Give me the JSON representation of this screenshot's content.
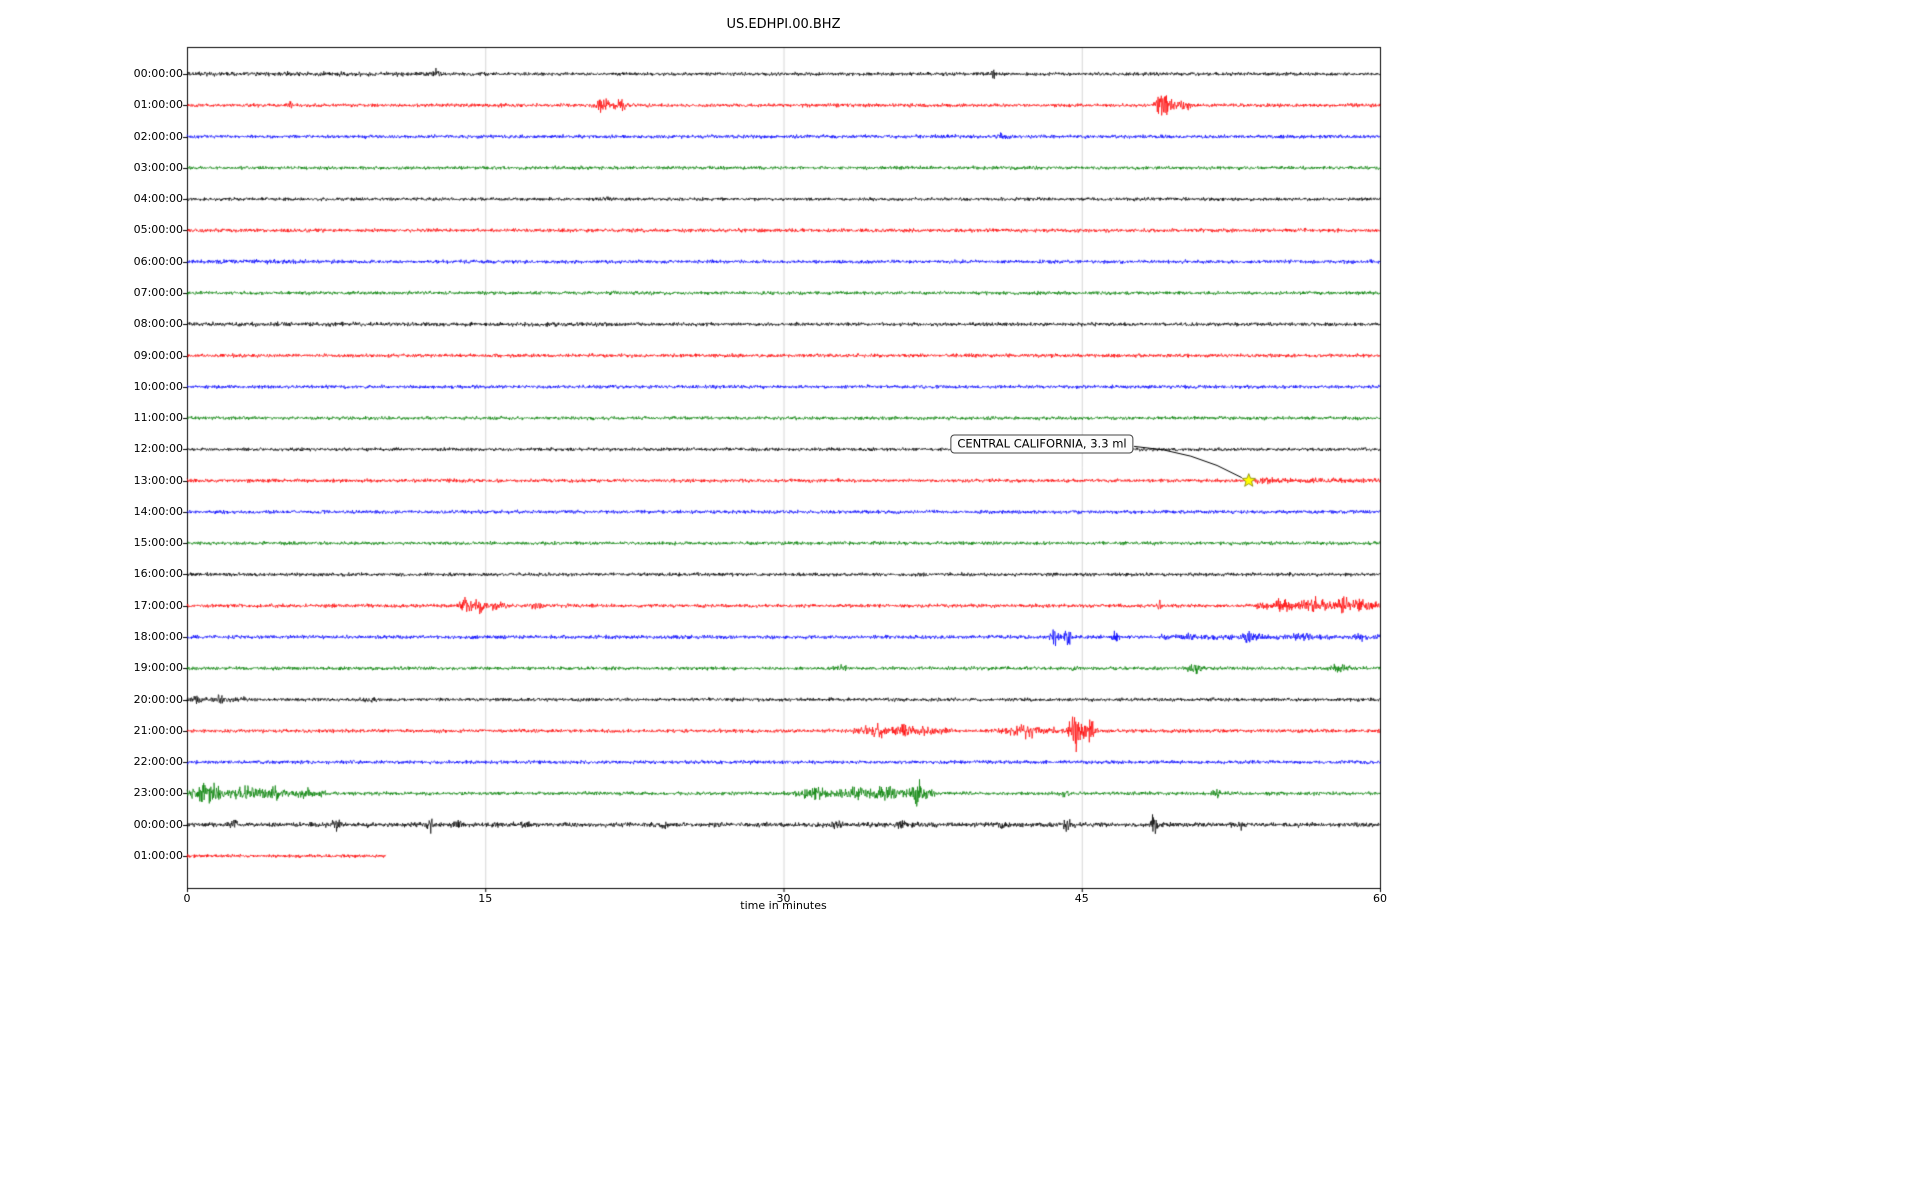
{
  "chart_data": {
    "type": "line",
    "subtype": "seismogram-dayplot",
    "title": "US.EDHPI.00.BHZ",
    "xlabel": "time in minutes",
    "x_range": [
      0,
      60
    ],
    "x_ticks": [
      0,
      15,
      30,
      45,
      60
    ],
    "x_tick_labels": [
      "0",
      "15",
      "30",
      "45",
      "60"
    ],
    "grid": true,
    "legend": false,
    "trace_colors_cycle": [
      "#000000",
      "#ff0000",
      "#0000ff",
      "#008000"
    ],
    "annotation": {
      "text": "CENTRAL CALIFORNIA, 3.3 ml",
      "target_min": 53.4,
      "target_row": 13,
      "box_min": 43.0,
      "box_row": 12,
      "box_dy": -5,
      "marker": "star",
      "marker_color": "#ffff00",
      "marker_edge": "#808000"
    },
    "rows": [
      {
        "label": "00:00:00",
        "color": "#000000",
        "base": 2.4,
        "spans": [
          [
            0,
            15,
            0.6
          ]
        ],
        "events": [
          [
            12.6,
            8,
            0.15
          ],
          [
            40.5,
            9,
            0.12
          ],
          [
            5.0,
            3,
            0.1
          ]
        ]
      },
      {
        "label": "01:00:00",
        "color": "#ff0000",
        "base": 2.4,
        "spans": [],
        "events": [
          [
            20.9,
            9,
            0.35
          ],
          [
            21.8,
            7,
            0.3
          ],
          [
            5.2,
            4,
            0.1
          ],
          [
            49.2,
            15,
            0.35
          ],
          [
            50.2,
            7,
            0.3
          ],
          [
            48.8,
            5,
            0.2
          ]
        ]
      },
      {
        "label": "02:00:00",
        "color": "#0000ff",
        "base": 2.5,
        "spans": [],
        "events": [
          [
            41,
            3,
            0.3
          ]
        ]
      },
      {
        "label": "03:00:00",
        "color": "#008000",
        "base": 2.4,
        "spans": [],
        "events": []
      },
      {
        "label": "04:00:00",
        "color": "#000000",
        "base": 2.3,
        "spans": [],
        "events": [
          [
            21,
            3,
            0.2
          ]
        ]
      },
      {
        "label": "05:00:00",
        "color": "#ff0000",
        "base": 2.6,
        "spans": [],
        "events": []
      },
      {
        "label": "06:00:00",
        "color": "#0000ff",
        "base": 2.5,
        "spans": [
          [
            0,
            8,
            0.6
          ]
        ],
        "events": []
      },
      {
        "label": "07:00:00",
        "color": "#008000",
        "base": 2.4,
        "spans": [],
        "events": []
      },
      {
        "label": "08:00:00",
        "color": "#000000",
        "base": 2.5,
        "spans": [
          [
            0,
            22,
            0.5
          ]
        ],
        "events": []
      },
      {
        "label": "09:00:00",
        "color": "#ff0000",
        "base": 2.5,
        "spans": [],
        "events": []
      },
      {
        "label": "10:00:00",
        "color": "#0000ff",
        "base": 2.4,
        "spans": [],
        "events": []
      },
      {
        "label": "11:00:00",
        "color": "#008000",
        "base": 2.4,
        "spans": [],
        "events": []
      },
      {
        "label": "12:00:00",
        "color": "#000000",
        "base": 2.3,
        "spans": [],
        "events": []
      },
      {
        "label": "13:00:00",
        "color": "#ff0000",
        "base": 2.5,
        "spans": [
          [
            53.5,
            60,
            1.2
          ]
        ],
        "events": [
          [
            54.2,
            3,
            0.3
          ]
        ]
      },
      {
        "label": "14:00:00",
        "color": "#0000ff",
        "base": 2.5,
        "spans": [],
        "events": []
      },
      {
        "label": "15:00:00",
        "color": "#008000",
        "base": 2.4,
        "spans": [],
        "events": []
      },
      {
        "label": "16:00:00",
        "color": "#000000",
        "base": 2.4,
        "spans": [],
        "events": []
      },
      {
        "label": "17:00:00",
        "color": "#ff0000",
        "base": 2.5,
        "spans": [
          [
            53.8,
            60,
            2.5
          ]
        ],
        "events": [
          [
            14.0,
            11,
            0.3
          ],
          [
            14.7,
            8,
            0.4
          ],
          [
            15.6,
            5,
            0.3
          ],
          [
            17.6,
            4,
            0.25
          ],
          [
            48.9,
            5,
            0.12
          ],
          [
            55.2,
            7,
            0.5
          ],
          [
            56.8,
            8,
            0.5
          ],
          [
            58.3,
            7,
            0.5
          ],
          [
            59.3,
            6,
            0.4
          ]
        ]
      },
      {
        "label": "18:00:00",
        "color": "#0000ff",
        "base": 2.6,
        "spans": [
          [
            49,
            60,
            1.0
          ]
        ],
        "events": [
          [
            43.6,
            16,
            0.22
          ],
          [
            44.3,
            12,
            0.2
          ],
          [
            46.7,
            9,
            0.15
          ],
          [
            50.3,
            4,
            0.2
          ],
          [
            53.5,
            7,
            0.35
          ],
          [
            56.1,
            4,
            0.3
          ],
          [
            59,
            3,
            0.3
          ]
        ]
      },
      {
        "label": "19:00:00",
        "color": "#008000",
        "base": 2.4,
        "spans": [],
        "events": [
          [
            33,
            3,
            0.4
          ],
          [
            50.7,
            7,
            0.3
          ],
          [
            57.9,
            5,
            0.5
          ],
          [
            44.6,
            3,
            0.2
          ]
        ]
      },
      {
        "label": "20:00:00",
        "color": "#000000",
        "base": 2.4,
        "spans": [
          [
            0,
            3,
            1.5
          ]
        ],
        "events": [
          [
            0.5,
            5,
            0.15
          ],
          [
            1.6,
            4,
            0.25
          ],
          [
            9,
            3,
            0.3
          ]
        ]
      },
      {
        "label": "21:00:00",
        "color": "#ff0000",
        "base": 2.5,
        "spans": [
          [
            33.5,
            38.5,
            3.2
          ],
          [
            40.8,
            45.6,
            2.8
          ]
        ],
        "events": [
          [
            34.6,
            5,
            0.4
          ],
          [
            36.1,
            4,
            0.4
          ],
          [
            42.3,
            5,
            0.5
          ],
          [
            44.7,
            24,
            0.28
          ],
          [
            45.4,
            9,
            0.3
          ]
        ]
      },
      {
        "label": "22:00:00",
        "color": "#0000ff",
        "base": 2.5,
        "spans": [],
        "events": []
      },
      {
        "label": "23:00:00",
        "color": "#008000",
        "base": 2.5,
        "spans": [
          [
            0,
            7,
            2.5
          ],
          [
            30.5,
            37,
            3.0
          ]
        ],
        "events": [
          [
            0.9,
            10,
            0.45
          ],
          [
            1.4,
            7,
            0.3
          ],
          [
            3.1,
            8,
            0.6
          ],
          [
            4.5,
            5,
            0.3
          ],
          [
            6,
            4,
            0.3
          ],
          [
            31.6,
            5,
            0.4
          ],
          [
            33.6,
            6,
            0.5
          ],
          [
            35.1,
            5,
            0.4
          ],
          [
            36.7,
            14,
            0.3
          ],
          [
            37.3,
            7,
            0.3
          ],
          [
            44.2,
            3,
            0.3
          ],
          [
            51.8,
            6,
            0.22
          ]
        ]
      },
      {
        "label": "00:00:00",
        "color": "#000000",
        "base": 3.0,
        "spans": [
          [
            0,
            60,
            0.3
          ]
        ],
        "events": [
          [
            2.4,
            7,
            0.18
          ],
          [
            7.5,
            12,
            0.15
          ],
          [
            12.2,
            8,
            0.18
          ],
          [
            13.6,
            5,
            0.2
          ],
          [
            17,
            5,
            0.18
          ],
          [
            24,
            4,
            0.2
          ],
          [
            32.7,
            6,
            0.22
          ],
          [
            36,
            4,
            0.2
          ],
          [
            41,
            4,
            0.2
          ],
          [
            44.3,
            6,
            0.2
          ],
          [
            48.6,
            11,
            0.15
          ],
          [
            53,
            4,
            0.2
          ]
        ]
      },
      {
        "label": "01:00:00",
        "color": "#ff0000",
        "base": 2.3,
        "extent": 10,
        "spans": [],
        "events": []
      }
    ]
  }
}
